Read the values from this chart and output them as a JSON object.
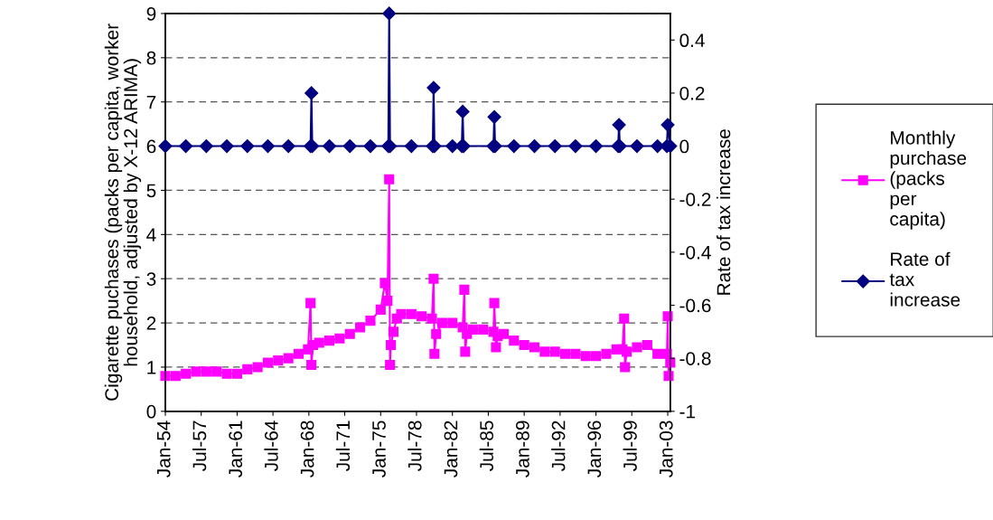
{
  "chart_data": {
    "type": "line",
    "ylabel": "Cigarette puchases (packs per capita, worker household, adjusted by X-12 ARIMA)",
    "y2label": "Rate of tax increase",
    "xlim": [
      "1954-01",
      "2003-04"
    ],
    "xticks": [
      {
        "value": "1954-01",
        "label": "Jan-54"
      },
      {
        "value": "1957-07",
        "label": "Jul-57"
      },
      {
        "value": "1961-01",
        "label": "Jan-61"
      },
      {
        "value": "1964-07",
        "label": "Jul-64"
      },
      {
        "value": "1968-01",
        "label": "Jan-68"
      },
      {
        "value": "1971-07",
        "label": "Jul-71"
      },
      {
        "value": "1975-01",
        "label": "Jan-75"
      },
      {
        "value": "1978-07",
        "label": "Jul-78"
      },
      {
        "value": "1982-01",
        "label": "Jan-82"
      },
      {
        "value": "1985-07",
        "label": "Jul-85"
      },
      {
        "value": "1989-01",
        "label": "Jan-89"
      },
      {
        "value": "1992-07",
        "label": "Jul-92"
      },
      {
        "value": "1996-01",
        "label": "Jan-96"
      },
      {
        "value": "1999-07",
        "label": "Jul-99"
      },
      {
        "value": "2003-01",
        "label": "Jan-03"
      }
    ],
    "ylim": [
      0,
      9
    ],
    "yticks": [
      0,
      1,
      2,
      3,
      4,
      5,
      6,
      7,
      8,
      9
    ],
    "y2lim": [
      -1,
      0.5
    ],
    "y2ticks": [
      -1,
      -0.8,
      -0.6,
      -0.4,
      -0.2,
      0,
      0.2,
      0.4
    ],
    "grid": "y",
    "legend": "right",
    "series": [
      {
        "name": "Monthly purchase (packs per capita)",
        "color": "#ff00ff",
        "marker": "square",
        "x": [
          "1954-01",
          "1955-01",
          "1956-01",
          "1957-01",
          "1958-01",
          "1959-01",
          "1960-01",
          "1961-01",
          "1962-01",
          "1963-01",
          "1964-01",
          "1965-01",
          "1966-01",
          "1967-01",
          "1967-12",
          "1968-03",
          "1968-04",
          "1968-06",
          "1969-01",
          "1970-01",
          "1971-01",
          "1972-01",
          "1973-01",
          "1974-01",
          "1975-01",
          "1975-06",
          "1975-09",
          "1975-11",
          "1975-12",
          "1976-01",
          "1976-04",
          "1976-08",
          "1977-01",
          "1978-01",
          "1979-01",
          "1980-01",
          "1980-03",
          "1980-04",
          "1980-06",
          "1981-01",
          "1982-01",
          "1983-01",
          "1983-03",
          "1983-04",
          "1983-06",
          "1984-01",
          "1985-01",
          "1986-01",
          "1986-02",
          "1986-04",
          "1986-06",
          "1987-01",
          "1988-01",
          "1989-01",
          "1990-01",
          "1991-01",
          "1992-01",
          "1993-01",
          "1994-01",
          "1995-01",
          "1996-01",
          "1997-01",
          "1998-01",
          "1998-08",
          "1998-10",
          "1998-11",
          "1999-01",
          "2000-01",
          "2001-01",
          "2002-01",
          "2002-12",
          "2003-01",
          "2003-02",
          "2003-04"
        ],
        "values": [
          0.8,
          0.8,
          0.85,
          0.9,
          0.9,
          0.9,
          0.85,
          0.85,
          0.95,
          1.0,
          1.1,
          1.15,
          1.2,
          1.3,
          1.4,
          2.45,
          1.05,
          1.5,
          1.55,
          1.6,
          1.65,
          1.75,
          1.9,
          2.05,
          2.3,
          2.9,
          2.5,
          5.25,
          1.05,
          1.5,
          1.8,
          2.1,
          2.2,
          2.2,
          2.15,
          2.1,
          3.0,
          1.3,
          1.75,
          2.0,
          2.0,
          1.9,
          2.75,
          1.35,
          1.75,
          1.85,
          1.85,
          1.8,
          2.45,
          1.45,
          1.7,
          1.75,
          1.6,
          1.5,
          1.45,
          1.35,
          1.35,
          1.3,
          1.3,
          1.25,
          1.25,
          1.3,
          1.4,
          1.4,
          2.1,
          1.0,
          1.35,
          1.45,
          1.5,
          1.3,
          1.3,
          2.15,
          0.8,
          1.1
        ]
      },
      {
        "name": "Rate of tax increase",
        "color": "#000080",
        "marker": "diamond",
        "axis": "y2",
        "x": [
          "1954-01",
          "1956-01",
          "1958-01",
          "1960-01",
          "1962-01",
          "1964-01",
          "1966-01",
          "1968-03",
          "1968-04",
          "1968-05",
          "1970-01",
          "1972-01",
          "1974-01",
          "1975-10",
          "1975-11",
          "1975-12",
          "1978-01",
          "1980-02",
          "1980-03",
          "1980-04",
          "1982-01",
          "1982-12",
          "1983-01",
          "1983-02",
          "1986-01",
          "1986-02",
          "1986-03",
          "1988-01",
          "1990-01",
          "1992-01",
          "1994-01",
          "1996-01",
          "1998-03",
          "1998-04",
          "1998-05",
          "2000-01",
          "2002-01",
          "2002-12",
          "2003-01",
          "2003-04"
        ],
        "values": [
          0,
          0,
          0,
          0,
          0,
          0,
          0,
          0,
          0.2,
          0,
          0,
          0,
          0,
          0,
          0.5,
          0,
          0,
          0,
          0.22,
          0,
          0,
          0,
          0.13,
          0,
          0,
          0.11,
          0,
          0,
          0,
          0,
          0,
          0,
          0,
          0.08,
          0,
          0,
          0,
          0,
          0.08,
          0
        ]
      }
    ]
  }
}
